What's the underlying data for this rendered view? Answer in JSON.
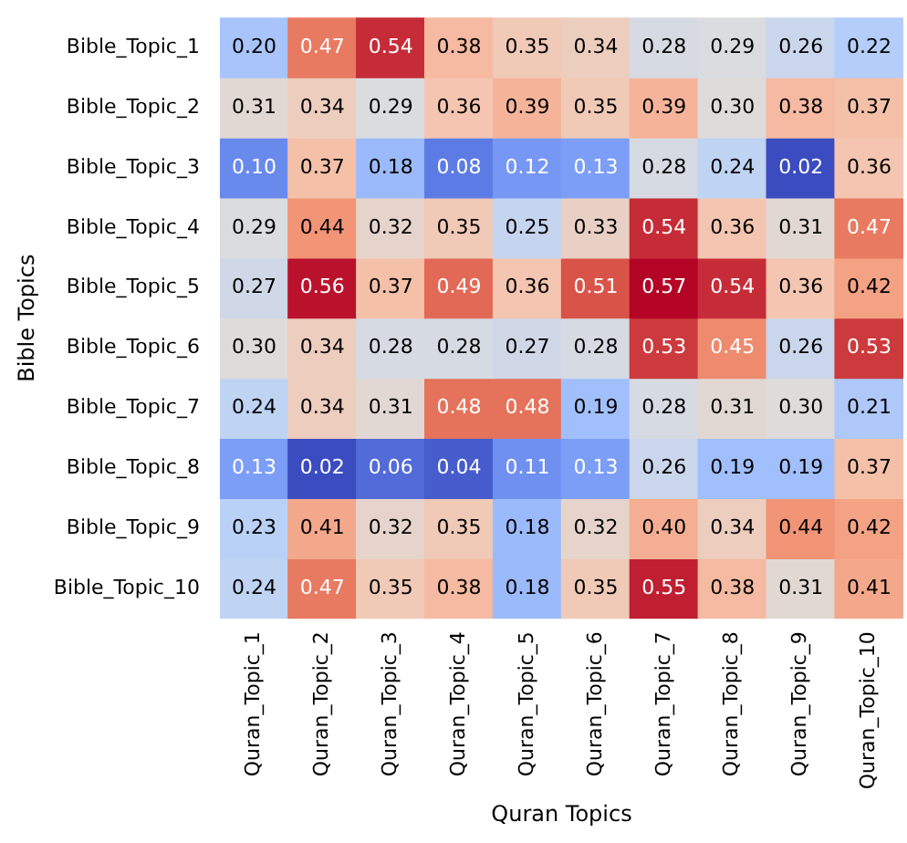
{
  "chart_data": {
    "type": "heatmap",
    "xlabel": "Quran Topics",
    "ylabel": "Bible Topics",
    "categories": [
      "Quran_Topic_1",
      "Quran_Topic_2",
      "Quran_Topic_3",
      "Quran_Topic_4",
      "Quran_Topic_5",
      "Quran_Topic_6",
      "Quran_Topic_7",
      "Quran_Topic_8",
      "Quran_Topic_9",
      "Quran_Topic_10"
    ],
    "y_categories": [
      "Bible_Topic_1",
      "Bible_Topic_2",
      "Bible_Topic_3",
      "Bible_Topic_4",
      "Bible_Topic_5",
      "Bible_Topic_6",
      "Bible_Topic_7",
      "Bible_Topic_8",
      "Bible_Topic_9",
      "Bible_Topic_10"
    ],
    "cells": [
      [
        0.2,
        0.47,
        0.54,
        0.38,
        0.35,
        0.34,
        0.28,
        0.29,
        0.26,
        0.22
      ],
      [
        0.31,
        0.34,
        0.29,
        0.36,
        0.39,
        0.35,
        0.39,
        0.3,
        0.38,
        0.37
      ],
      [
        0.1,
        0.37,
        0.18,
        0.08,
        0.12,
        0.13,
        0.28,
        0.24,
        0.02,
        0.36
      ],
      [
        0.29,
        0.44,
        0.32,
        0.35,
        0.25,
        0.33,
        0.54,
        0.36,
        0.31,
        0.47
      ],
      [
        0.27,
        0.56,
        0.37,
        0.49,
        0.36,
        0.51,
        0.57,
        0.54,
        0.36,
        0.42
      ],
      [
        0.3,
        0.34,
        0.28,
        0.28,
        0.27,
        0.28,
        0.53,
        0.45,
        0.26,
        0.53
      ],
      [
        0.24,
        0.34,
        0.31,
        0.48,
        0.48,
        0.19,
        0.28,
        0.31,
        0.3,
        0.21
      ],
      [
        0.13,
        0.02,
        0.06,
        0.04,
        0.11,
        0.13,
        0.26,
        0.19,
        0.19,
        0.37
      ],
      [
        0.23,
        0.41,
        0.32,
        0.35,
        0.18,
        0.32,
        0.4,
        0.34,
        0.44,
        0.42
      ],
      [
        0.24,
        0.47,
        0.35,
        0.38,
        0.18,
        0.35,
        0.55,
        0.38,
        0.31,
        0.41
      ]
    ],
    "cell_labels": [
      [
        "0.20",
        "0.47",
        "0.54",
        "0.38",
        "0.35",
        "0.34",
        "0.28",
        "0.29",
        "0.26",
        "0.22"
      ],
      [
        "0.31",
        "0.34",
        "0.29",
        "0.36",
        "0.39",
        "0.35",
        "0.39",
        "0.30",
        "0.38",
        "0.37"
      ],
      [
        "0.10",
        "0.37",
        "0.18",
        "0.08",
        "0.12",
        "0.13",
        "0.28",
        "0.24",
        "0.02",
        "0.36"
      ],
      [
        "0.29",
        "0.44",
        "0.32",
        "0.35",
        "0.25",
        "0.33",
        "0.54",
        "0.36",
        "0.31",
        "0.47"
      ],
      [
        "0.27",
        "0.56",
        "0.37",
        "0.49",
        "0.36",
        "0.51",
        "0.57",
        "0.54",
        "0.36",
        "0.42"
      ],
      [
        "0.30",
        "0.34",
        "0.28",
        "0.28",
        "0.27",
        "0.28",
        "0.53",
        "0.45",
        "0.26",
        "0.53"
      ],
      [
        "0.24",
        "0.34",
        "0.31",
        "0.48",
        "0.48",
        "0.19",
        "0.28",
        "0.31",
        "0.30",
        "0.21"
      ],
      [
        "0.13",
        "0.02",
        "0.06",
        "0.04",
        "0.11",
        "0.13",
        "0.26",
        "0.19",
        "0.19",
        "0.37"
      ],
      [
        "0.23",
        "0.41",
        "0.32",
        "0.35",
        "0.18",
        "0.32",
        "0.40",
        "0.34",
        "0.44",
        "0.42"
      ],
      [
        "0.24",
        "0.47",
        "0.35",
        "0.38",
        "0.18",
        "0.35",
        "0.55",
        "0.38",
        "0.31",
        "0.41"
      ]
    ]
  }
}
